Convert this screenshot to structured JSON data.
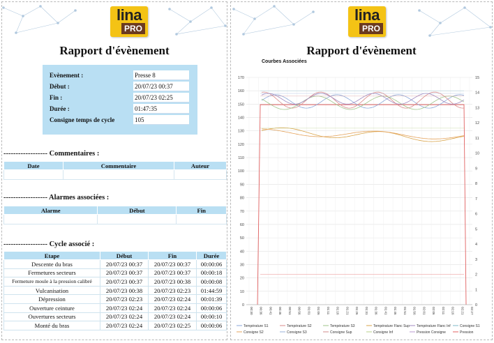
{
  "left_page": {
    "logo": {
      "line1": "lina",
      "line2": "PRO",
      "brand_color": "#f4c315",
      "pro_color": "#6b3a1f"
    },
    "title": "Rapport d'évènement",
    "event": {
      "rows": [
        {
          "label": "Evènement :",
          "value": "Presse 8"
        },
        {
          "label": "Début :",
          "value": "20/07/23 00:37"
        },
        {
          "label": "Fin :",
          "value": "20/07/23 02:25"
        },
        {
          "label": "Durée :",
          "value": "01:47:35"
        },
        {
          "label": "Consigne temps de cycle",
          "value": "105"
        }
      ]
    },
    "comments": {
      "title": "------------------  Commentaires :",
      "headers": [
        "Date",
        "Commentaire",
        "Auteur"
      ]
    },
    "alarms": {
      "title": "------------------  Alarmes associées :",
      "headers": [
        "Alarme",
        "Début",
        "Fin"
      ]
    },
    "cycle": {
      "title": "------------------  Cycle associé :",
      "headers": [
        "Etape",
        "Début",
        "Fin",
        "Durée"
      ],
      "rows": [
        [
          "Descente du bras",
          "20/07/23 00:37",
          "20/07/23 00:37",
          "00:00:06"
        ],
        [
          "Fermetures secteurs",
          "20/07/23 00:37",
          "20/07/23 00:37",
          "00:00:18"
        ],
        [
          "Fermeture moule à la pression calibré",
          "20/07/23 00:37",
          "20/07/23 00:38",
          "00:00:08"
        ],
        [
          "Vulcanisation",
          "20/07/23 00:38",
          "20/07/23 02:23",
          "01:44:59"
        ],
        [
          "Dépression",
          "20/07/23 02:23",
          "20/07/23 02:24",
          "00:01:39"
        ],
        [
          "Ouverture ceinture",
          "20/07/23 02:24",
          "20/07/23 02:24",
          "00:00:06"
        ],
        [
          "Ouvertures secteurs",
          "20/07/23 02:24",
          "20/07/23 02:24",
          "00:00:10"
        ],
        [
          "Monté du bras",
          "20/07/23 02:24",
          "20/07/23 02:25",
          "00:00:06"
        ]
      ]
    }
  },
  "right_page": {
    "logo": {
      "line1": "lina",
      "line2": "PRO"
    },
    "title": "Rapport d'évènement",
    "chart_label": "Courbes Associées"
  },
  "chart_data": {
    "type": "line",
    "y_left": {
      "min": 0,
      "max": 170,
      "ticks": [
        0,
        10,
        20,
        30,
        40,
        50,
        60,
        70,
        80,
        90,
        100,
        110,
        120,
        130,
        140,
        150,
        160,
        170
      ]
    },
    "y_right": {
      "min": 0,
      "max": 15,
      "ticks": [
        0,
        1,
        2,
        3,
        4,
        5,
        6,
        7,
        8,
        9,
        10,
        11,
        12,
        13,
        14,
        15
      ]
    },
    "x_ticks": [
      "00:30",
      "00:36",
      "00:41",
      "00:46",
      "00:51",
      "00:56",
      "01:01",
      "01:06",
      "01:11",
      "01:16",
      "01:21",
      "01:26",
      "01:31",
      "01:36",
      "01:41",
      "01:46",
      "01:51",
      "01:56",
      "02:01",
      "02:06",
      "02:11",
      "02:16",
      "02:21",
      "02:27"
    ],
    "series": [
      {
        "name": "Température S1",
        "color": "#8aa7d8"
      },
      {
        "name": "Température S2",
        "color": "#d98a8a"
      },
      {
        "name": "Température S3",
        "color": "#9fc48a"
      },
      {
        "name": "Température Flanc Sup",
        "color": "#d9a44a"
      },
      {
        "name": "Température Flanc Inf",
        "color": "#a08ac0"
      },
      {
        "name": "Consigne S1",
        "color": "#7fb8c8"
      },
      {
        "name": "Consigne S2",
        "color": "#e5a35c"
      },
      {
        "name": "Consigne S3",
        "color": "#9ab0d8"
      },
      {
        "name": "Consigne Sup",
        "color": "#d08a8a"
      },
      {
        "name": "Consigne Inf",
        "color": "#b7d08a"
      },
      {
        "name": "Pression Consigne",
        "color": "#b89ad0"
      },
      {
        "name": "Pression",
        "color": "#e06060"
      }
    ],
    "temperature_band": {
      "upper_approx": [
        145,
        160
      ],
      "lower_approx": [
        120,
        138
      ]
    },
    "pression_plateau_right_axis": 13.2,
    "pression_consigne_right_axis": 2
  }
}
